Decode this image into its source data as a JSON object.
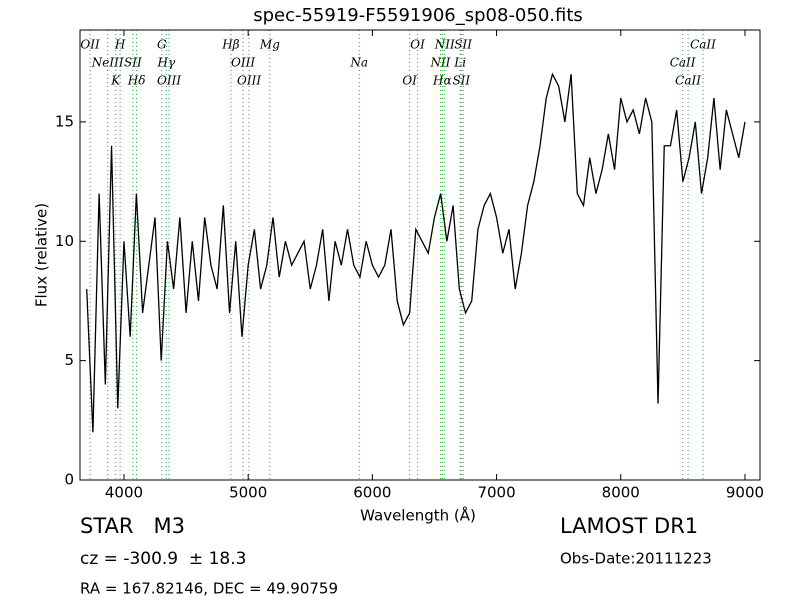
{
  "chart_data": {
    "type": "line",
    "title": "spec-55919-F5591906_sp08-050.fits",
    "x_label": "Wavelength (Å)",
    "y_label": "Flux (relative)",
    "xlim": [
      3646,
      9121
    ],
    "ylim": [
      0,
      18.85
    ],
    "xticks": [
      4000,
      5000,
      6000,
      7000,
      8000,
      9000
    ],
    "yticks": [
      0,
      5,
      10,
      15
    ],
    "grid": false,
    "x": [
      3700,
      3750,
      3800,
      3850,
      3900,
      3950,
      4000,
      4050,
      4100,
      4150,
      4200,
      4250,
      4300,
      4350,
      4400,
      4450,
      4500,
      4550,
      4600,
      4650,
      4700,
      4750,
      4800,
      4850,
      4900,
      4950,
      5000,
      5050,
      5100,
      5150,
      5200,
      5250,
      5300,
      5350,
      5400,
      5450,
      5500,
      5550,
      5600,
      5650,
      5700,
      5750,
      5800,
      5850,
      5900,
      5950,
      6000,
      6050,
      6100,
      6150,
      6200,
      6250,
      6300,
      6350,
      6400,
      6450,
      6500,
      6550,
      6600,
      6650,
      6700,
      6750,
      6800,
      6850,
      6900,
      6950,
      7000,
      7050,
      7100,
      7150,
      7200,
      7250,
      7300,
      7350,
      7400,
      7450,
      7500,
      7550,
      7600,
      7650,
      7700,
      7750,
      7800,
      7850,
      7900,
      7950,
      8000,
      8050,
      8100,
      8150,
      8200,
      8250,
      8300,
      8350,
      8400,
      8450,
      8500,
      8550,
      8600,
      8650,
      8700,
      8750,
      8800,
      8850,
      8900,
      8950,
      9000
    ],
    "series": [
      {
        "name": "flux",
        "color": "#000000",
        "values": [
          8,
          2,
          12,
          4,
          14,
          3,
          10,
          6,
          12,
          7,
          9,
          11,
          5,
          10,
          8,
          11,
          7,
          10,
          7.5,
          11,
          9,
          8,
          11.5,
          7,
          10,
          6,
          9,
          10.5,
          8,
          9,
          11,
          8.5,
          10,
          9,
          9.5,
          10,
          8,
          9,
          10.5,
          7.5,
          10,
          9,
          10.5,
          9,
          8.5,
          10,
          9,
          8.5,
          9,
          10.5,
          7.5,
          6.5,
          7,
          10.5,
          10,
          9.5,
          11,
          12,
          10,
          11.5,
          8,
          7,
          7.5,
          10.5,
          11.5,
          12,
          11,
          9.5,
          10.5,
          8,
          9.5,
          11.5,
          12.5,
          14,
          16,
          17,
          16.5,
          15,
          17,
          12,
          11.5,
          13.5,
          12,
          13,
          14.5,
          13,
          16,
          15,
          15.5,
          14.5,
          16,
          15,
          3.2,
          14,
          14,
          15.5,
          12.5,
          13.5,
          15,
          12,
          13.5,
          16,
          13,
          15.5,
          14.5,
          13.5,
          15
        ]
      }
    ],
    "line_color": "#2ca02c",
    "lines": [
      {
        "wavelength": 3727,
        "label": "OII"
      },
      {
        "wavelength": 3869,
        "label": "NeIII"
      },
      {
        "wavelength": 3934,
        "label": "K"
      },
      {
        "wavelength": 3969,
        "label": "H"
      },
      {
        "wavelength": 4072,
        "label": "SII"
      },
      {
        "wavelength": 4102,
        "label": "Hδ"
      },
      {
        "wavelength": 4305,
        "label": "G"
      },
      {
        "wavelength": 4341,
        "label": "Hγ"
      },
      {
        "wavelength": 4363,
        "label": "OIII"
      },
      {
        "wavelength": 4861,
        "label": "Hβ"
      },
      {
        "wavelength": 4959,
        "label": "OIII"
      },
      {
        "wavelength": 5007,
        "label": "OIII"
      },
      {
        "wavelength": 5175,
        "label": "Mg"
      },
      {
        "wavelength": 5894,
        "label": "Na"
      },
      {
        "wavelength": 6300,
        "label": "OI"
      },
      {
        "wavelength": 6364,
        "label": "OI"
      },
      {
        "wavelength": 6548,
        "label": "NII"
      },
      {
        "wavelength": 6563,
        "label": "Hα"
      },
      {
        "wavelength": 6583,
        "label": "NII"
      },
      {
        "wavelength": 6707,
        "label": "Li"
      },
      {
        "wavelength": 6716,
        "label": "SII"
      },
      {
        "wavelength": 6731,
        "label": "SII"
      },
      {
        "wavelength": 8498,
        "label": "CaII"
      },
      {
        "wavelength": 8542,
        "label": "CaII"
      },
      {
        "wavelength": 8662,
        "label": "CaII"
      }
    ],
    "object_class": "STAR   M3",
    "redshift": "cz = -300.9  ± 18.3",
    "coordinates": "RA = 167.82146, DEC = 49.90759",
    "survey": "LAMOST DR1",
    "obs_date": "Obs-Date:20111223"
  }
}
